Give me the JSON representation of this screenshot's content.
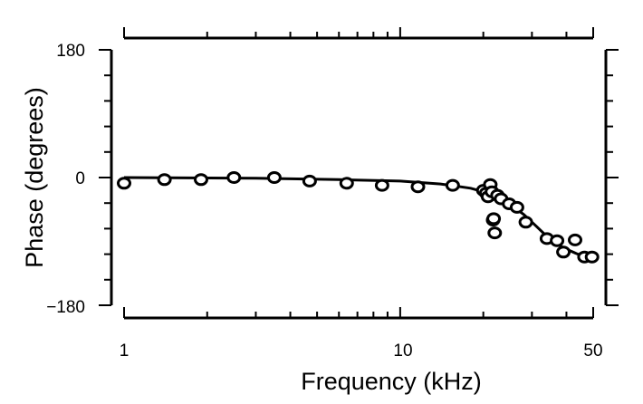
{
  "chart_data": {
    "type": "scatter",
    "xlabel": "Frequency (kHz)",
    "ylabel": "Phase (degrees)",
    "xscale": "log",
    "xlim": [
      1,
      50
    ],
    "ylim": [
      -180,
      180
    ],
    "x_tick_labels": [
      "1",
      "10",
      "50"
    ],
    "y_tick_labels": [
      "180",
      "0",
      "−180"
    ],
    "grid": false,
    "series": [
      {
        "marker": "open-circle",
        "points": [
          {
            "x": 1.0,
            "y": -8
          },
          {
            "x": 1.4,
            "y": -3
          },
          {
            "x": 1.9,
            "y": -3
          },
          {
            "x": 2.5,
            "y": 0
          },
          {
            "x": 3.5,
            "y": 0
          },
          {
            "x": 4.7,
            "y": -5
          },
          {
            "x": 6.4,
            "y": -8
          },
          {
            "x": 8.6,
            "y": -11
          },
          {
            "x": 11.6,
            "y": -13
          },
          {
            "x": 15.5,
            "y": -11
          },
          {
            "x": 20.0,
            "y": -18
          },
          {
            "x": 20.5,
            "y": -22
          },
          {
            "x": 20.8,
            "y": -27
          },
          {
            "x": 21.2,
            "y": -10
          },
          {
            "x": 21.5,
            "y": -20
          },
          {
            "x": 21.7,
            "y": -60
          },
          {
            "x": 21.8,
            "y": -58
          },
          {
            "x": 22.0,
            "y": -78
          },
          {
            "x": 22.5,
            "y": -25
          },
          {
            "x": 23.2,
            "y": -30
          },
          {
            "x": 24.8,
            "y": -37
          },
          {
            "x": 26.5,
            "y": -42
          },
          {
            "x": 28.5,
            "y": -63
          },
          {
            "x": 34.0,
            "y": -86
          },
          {
            "x": 37.0,
            "y": -89
          },
          {
            "x": 39.0,
            "y": -105
          },
          {
            "x": 43.0,
            "y": -88
          },
          {
            "x": 46.5,
            "y": -112
          },
          {
            "x": 49.5,
            "y": -112
          }
        ]
      },
      {
        "line": "solid",
        "points": [
          {
            "x": 1.0,
            "y": 0
          },
          {
            "x": 3.0,
            "y": -1
          },
          {
            "x": 6.0,
            "y": -3
          },
          {
            "x": 10.0,
            "y": -5
          },
          {
            "x": 14.0,
            "y": -9
          },
          {
            "x": 18.0,
            "y": -15
          },
          {
            "x": 20.0,
            "y": -20
          },
          {
            "x": 22.0,
            "y": -26
          },
          {
            "x": 25.0,
            "y": -38
          },
          {
            "x": 28.0,
            "y": -52
          },
          {
            "x": 31.0,
            "y": -68
          },
          {
            "x": 34.0,
            "y": -83
          },
          {
            "x": 37.0,
            "y": -94
          },
          {
            "x": 40.0,
            "y": -101
          },
          {
            "x": 44.0,
            "y": -108
          },
          {
            "x": 50.0,
            "y": -113
          }
        ]
      }
    ]
  }
}
